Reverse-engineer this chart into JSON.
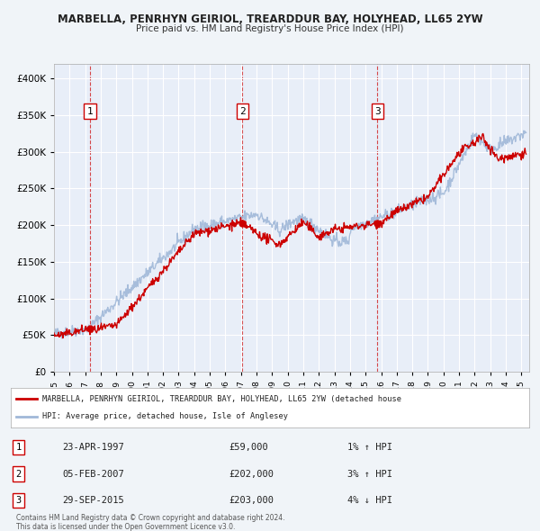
{
  "title_line1": "MARBELLA, PENRHYN GEIRIOL, TREARDDUR BAY, HOLYHEAD, LL65 2YW",
  "title_line2": "Price paid vs. HM Land Registry's House Price Index (HPI)",
  "background_color": "#f0f4fa",
  "plot_bg_color": "#e8eef8",
  "grid_color": "#ffffff",
  "red_line_color": "#cc0000",
  "blue_line_color": "#a0b8d8",
  "sale_dot_color": "#cc0000",
  "vline_color": "#cc0000",
  "ylabel_values": [
    "£0",
    "£50K",
    "£100K",
    "£150K",
    "£200K",
    "£250K",
    "£300K",
    "£350K",
    "£400K"
  ],
  "ytick_values": [
    0,
    50000,
    100000,
    150000,
    200000,
    250000,
    300000,
    350000,
    400000
  ],
  "ylim": [
    0,
    420000
  ],
  "xlim_start": 1995.0,
  "xlim_end": 2025.5,
  "xtick_years": [
    1995,
    1996,
    1997,
    1998,
    1999,
    2000,
    2001,
    2002,
    2003,
    2004,
    2005,
    2006,
    2007,
    2008,
    2009,
    2010,
    2011,
    2012,
    2013,
    2014,
    2015,
    2016,
    2017,
    2018,
    2019,
    2020,
    2021,
    2022,
    2023,
    2024,
    2025
  ],
  "sale_points": [
    {
      "num": 1,
      "year": 1997.31,
      "price": 59000,
      "date": "23-APR-1997",
      "hpi_pct": "1%",
      "hpi_dir": "↑"
    },
    {
      "num": 2,
      "year": 2007.09,
      "price": 202000,
      "date": "05-FEB-2007",
      "hpi_pct": "3%",
      "hpi_dir": "↑"
    },
    {
      "num": 3,
      "year": 2015.75,
      "price": 203000,
      "date": "29-SEP-2015",
      "hpi_pct": "4%",
      "hpi_dir": "↓"
    }
  ],
  "legend_red_label": "MARBELLA, PENRHYN GEIRIOL, TREARDDUR BAY, HOLYHEAD, LL65 2YW (detached house",
  "legend_blue_label": "HPI: Average price, detached house, Isle of Anglesey",
  "footer_line1": "Contains HM Land Registry data © Crown copyright and database right 2024.",
  "footer_line2": "This data is licensed under the Open Government Licence v3.0."
}
